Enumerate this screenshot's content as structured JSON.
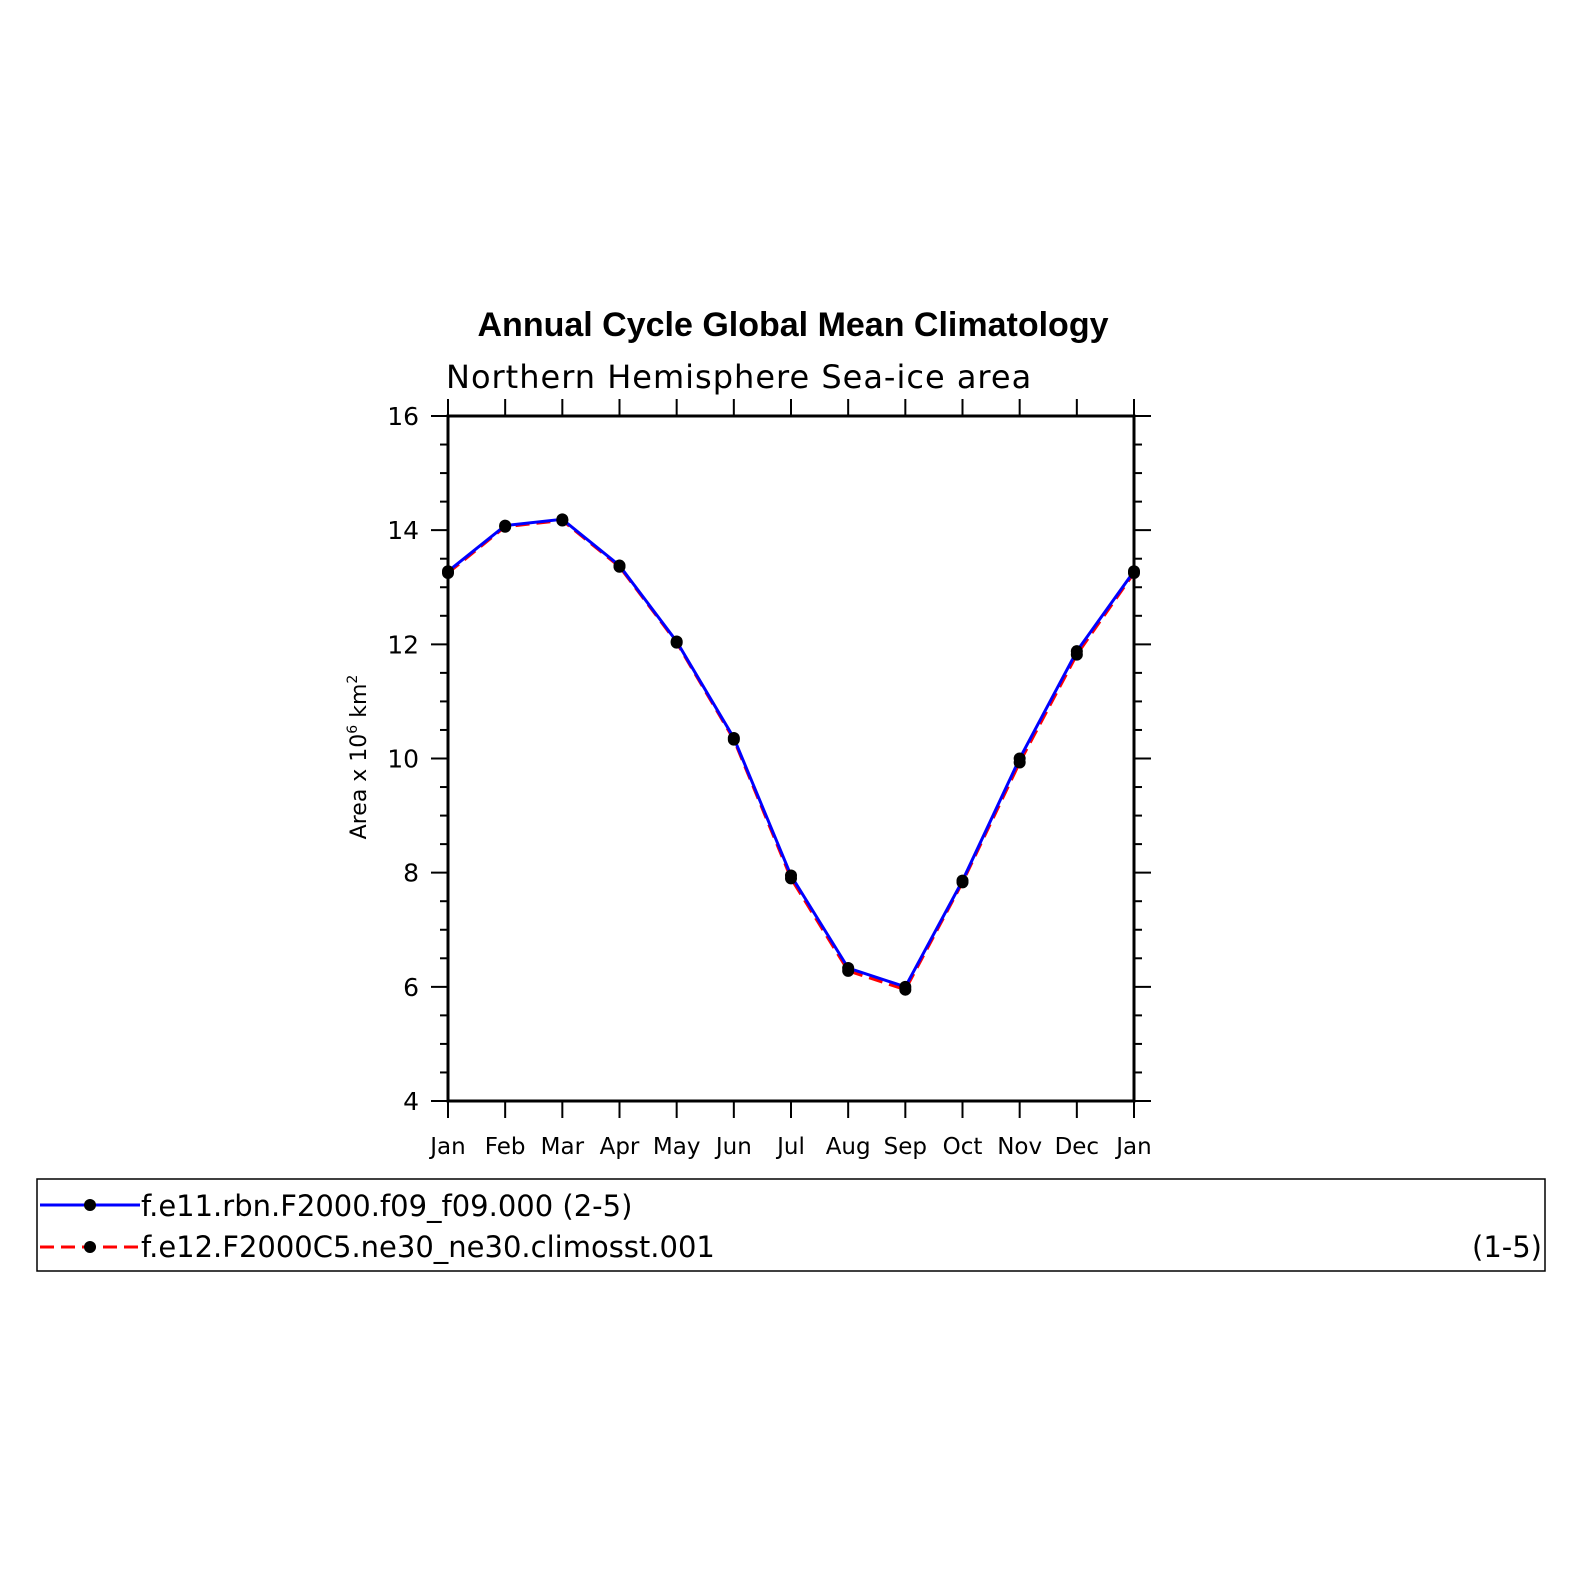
{
  "chart_data": {
    "type": "line",
    "title": "Annual Cycle Global Mean Climatology",
    "subtitle": "Northern Hemisphere Sea-ice area",
    "ylabel": "Area x 10",
    "ylabel_sup1": "6",
    "ylabel_unit": " km",
    "ylabel_sup2": "2",
    "ylim": [
      4,
      16
    ],
    "yticks": [
      "4",
      "6",
      "8",
      "10",
      "12",
      "14",
      "16"
    ],
    "categories": [
      "Jan",
      "Feb",
      "Mar",
      "Apr",
      "May",
      "Jun",
      "Jul",
      "Aug",
      "Sep",
      "Oct",
      "Nov",
      "Dec",
      "Jan"
    ],
    "series": [
      {
        "name": "f.e11.rbn.F2000.f09_f09.000",
        "range_label": "(2-5)",
        "color": "#0000ff",
        "style": "solid",
        "values": [
          13.28,
          14.08,
          14.19,
          13.38,
          12.05,
          10.36,
          7.95,
          6.33,
          6.0,
          7.86,
          10.0,
          11.88,
          13.28
        ]
      },
      {
        "name": "f.e12.F2000C5.ne30_ne30.climosst.001",
        "range_label": "(1-5)",
        "color": "#ff0000",
        "style": "dashed",
        "values": [
          13.25,
          14.06,
          14.17,
          13.36,
          12.03,
          10.33,
          7.9,
          6.28,
          5.95,
          7.83,
          9.93,
          11.82,
          13.25
        ]
      }
    ],
    "legend": "bottom",
    "grid": false
  }
}
